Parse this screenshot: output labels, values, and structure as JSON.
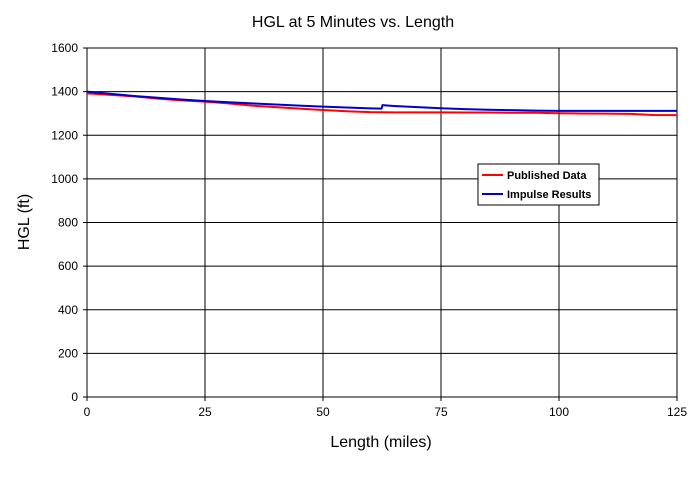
{
  "chart_data": {
    "type": "line",
    "title": "HGL at 5 Minutes vs. Length",
    "xlabel": "Length (miles)",
    "ylabel": "HGL (ft)",
    "xlim": [
      0,
      125
    ],
    "ylim": [
      0,
      1600
    ],
    "xticks": [
      0,
      25,
      50,
      75,
      100,
      125
    ],
    "yticks": [
      0,
      200,
      400,
      600,
      800,
      1000,
      1200,
      1400,
      1600
    ],
    "grid": true,
    "legend_position": "right",
    "series": [
      {
        "name": "Published Data",
        "color": "#ff0000",
        "x": [
          0,
          5,
          10,
          15,
          20,
          25,
          30,
          35,
          40,
          45,
          50,
          55,
          60,
          65,
          70,
          75,
          80,
          85,
          90,
          95,
          100,
          105,
          110,
          115,
          120,
          125
        ],
        "y": [
          1392,
          1385,
          1378,
          1368,
          1360,
          1354,
          1346,
          1336,
          1329,
          1322,
          1316,
          1310,
          1306,
          1305,
          1305,
          1305,
          1304,
          1304,
          1303,
          1303,
          1301,
          1300,
          1299,
          1298,
          1293,
          1292
        ]
      },
      {
        "name": "Impulse Results",
        "color": "#0000cc",
        "x": [
          0,
          5,
          10,
          15,
          20,
          25,
          30,
          35,
          40,
          45,
          50,
          55,
          60,
          62.4,
          62.6,
          65,
          70,
          75,
          80,
          85,
          90,
          95,
          100,
          105,
          110,
          115,
          120,
          125
        ],
        "y": [
          1400,
          1390,
          1380,
          1372,
          1364,
          1357,
          1351,
          1346,
          1341,
          1336,
          1331,
          1327,
          1323,
          1322,
          1338,
          1334,
          1329,
          1324,
          1320,
          1317,
          1315,
          1313,
          1312,
          1312,
          1312,
          1312,
          1312,
          1312
        ]
      }
    ]
  }
}
